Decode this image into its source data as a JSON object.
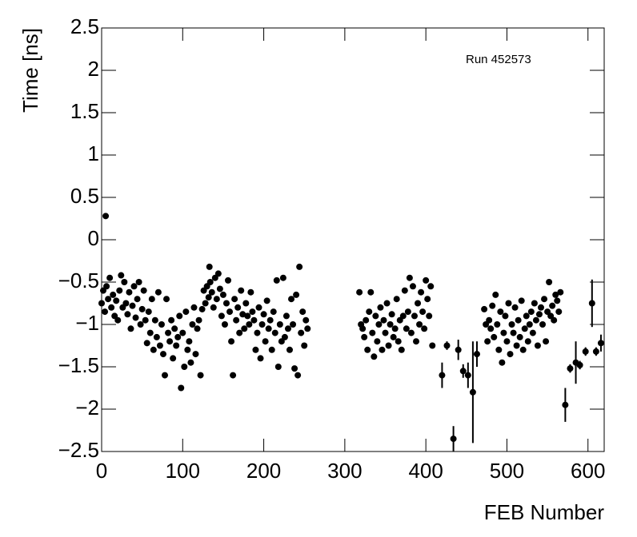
{
  "chart_data": {
    "type": "scatter",
    "annotation": "Run 452573",
    "x_label": "FEB Number",
    "y_label": "Time [ns]",
    "xlim": [
      0,
      620
    ],
    "ylim": [
      -2.5,
      2.5
    ],
    "xticks": [
      0,
      100,
      200,
      300,
      400,
      500,
      600
    ],
    "yticks": [
      {
        "value": -2.5,
        "label": "−2.5"
      },
      {
        "value": -2,
        "label": "−2"
      },
      {
        "value": -1.5,
        "label": "−1.5"
      },
      {
        "value": -1,
        "label": "−1"
      },
      {
        "value": -0.5,
        "label": "−0.5"
      },
      0,
      0.5,
      1,
      1.5,
      2,
      2.5
    ],
    "color": "#000000",
    "x": [
      0,
      2,
      4,
      5,
      6,
      8,
      10,
      12,
      14,
      16,
      18,
      20,
      22,
      24,
      26,
      28,
      30,
      32,
      34,
      36,
      38,
      40,
      42,
      44,
      46,
      48,
      50,
      52,
      54,
      56,
      58,
      60,
      62,
      64,
      66,
      68,
      70,
      72,
      74,
      76,
      78,
      80,
      82,
      84,
      86,
      88,
      90,
      92,
      94,
      96,
      98,
      100,
      102,
      104,
      106,
      108,
      110,
      112,
      114,
      116,
      118,
      120,
      122,
      124,
      126,
      128,
      130,
      132,
      133,
      134,
      136,
      138,
      140,
      142,
      144,
      146,
      148,
      150,
      152,
      154,
      156,
      158,
      160,
      162,
      164,
      166,
      168,
      170,
      172,
      174,
      176,
      178,
      180,
      182,
      184,
      186,
      188,
      190,
      192,
      194,
      196,
      198,
      200,
      202,
      204,
      206,
      208,
      210,
      212,
      214,
      216,
      218,
      220,
      222,
      224,
      226,
      228,
      230,
      232,
      234,
      236,
      238,
      240,
      242,
      244,
      246,
      248,
      250,
      252,
      254,
      318,
      320,
      322,
      324,
      326,
      328,
      330,
      332,
      334,
      336,
      338,
      340,
      342,
      344,
      346,
      348,
      350,
      352,
      354,
      356,
      358,
      360,
      362,
      364,
      366,
      368,
      370,
      372,
      374,
      376,
      378,
      380,
      382,
      384,
      386,
      388,
      390,
      392,
      394,
      396,
      398,
      400,
      402,
      404,
      406,
      408,
      420,
      426,
      434,
      440,
      446,
      452,
      458,
      463,
      472,
      474,
      476,
      478,
      480,
      482,
      484,
      486,
      488,
      490,
      492,
      494,
      496,
      498,
      500,
      502,
      504,
      506,
      508,
      510,
      512,
      514,
      516,
      518,
      520,
      522,
      524,
      526,
      528,
      530,
      532,
      534,
      536,
      538,
      540,
      542,
      544,
      546,
      548,
      550,
      552,
      554,
      556,
      558,
      560,
      562,
      564,
      566,
      572,
      578,
      585,
      590,
      597,
      605,
      610,
      616
    ],
    "values": [
      -0.75,
      -0.6,
      -0.85,
      0.28,
      -0.55,
      -0.7,
      -0.45,
      -0.8,
      -0.65,
      -0.9,
      -0.72,
      -0.95,
      -0.6,
      -0.42,
      -0.8,
      -0.5,
      -0.75,
      -0.88,
      -0.62,
      -1.05,
      -0.78,
      -0.55,
      -0.92,
      -0.7,
      -0.5,
      -1.0,
      -0.82,
      -0.6,
      -0.95,
      -1.22,
      -0.85,
      -1.1,
      -0.7,
      -1.3,
      -0.95,
      -1.15,
      -0.62,
      -1.25,
      -1.0,
      -1.35,
      -1.6,
      -0.7,
      -1.1,
      -1.2,
      -0.95,
      -1.4,
      -1.05,
      -1.25,
      -1.15,
      -0.9,
      -1.75,
      -1.1,
      -1.5,
      -0.85,
      -1.3,
      -1.2,
      -1.45,
      -1.0,
      -0.8,
      -1.35,
      -1.05,
      -0.95,
      -1.6,
      -0.82,
      -0.6,
      -0.75,
      -0.55,
      -0.68,
      -0.32,
      -0.5,
      -0.62,
      -0.8,
      -0.45,
      -0.7,
      -0.4,
      -0.58,
      -0.9,
      -0.65,
      -1.0,
      -0.75,
      -0.48,
      -0.85,
      -1.2,
      -1.6,
      -0.7,
      -0.95,
      -0.8,
      -1.1,
      -0.6,
      -0.88,
      -1.05,
      -0.75,
      -0.9,
      -1.0,
      -0.62,
      -0.85,
      -0.95,
      -1.3,
      -1.1,
      -0.8,
      -1.4,
      -1.0,
      -0.88,
      -1.2,
      -0.72,
      -1.05,
      -0.95,
      -1.3,
      -0.85,
      -1.1,
      -0.48,
      -1.5,
      -1.0,
      -1.2,
      -0.45,
      -1.15,
      -0.9,
      -1.05,
      -1.3,
      -0.7,
      -1.0,
      -1.52,
      -0.65,
      -1.6,
      -0.32,
      -1.1,
      -0.85,
      -1.25,
      -0.95,
      -1.05,
      -0.62,
      -1.0,
      -1.05,
      -1.15,
      -0.95,
      -1.3,
      -0.85,
      -0.62,
      -1.1,
      -1.38,
      -0.9,
      -1.2,
      -1.0,
      -0.8,
      -1.3,
      -0.95,
      -1.1,
      -0.75,
      -1.25,
      -1.0,
      -0.88,
      -1.15,
      -1.05,
      -0.7,
      -1.2,
      -0.95,
      -1.3,
      -0.9,
      -0.6,
      -1.05,
      -0.85,
      -0.45,
      -1.1,
      -0.55,
      -0.9,
      -1.2,
      -0.75,
      -1.0,
      -0.62,
      -0.85,
      -1.05,
      -0.48,
      -0.7,
      -0.9,
      -0.55,
      -1.25,
      -1.6,
      -1.25,
      -2.35,
      -1.3,
      -1.55,
      -1.6,
      -1.8,
      -1.35,
      -0.82,
      -1.0,
      -1.2,
      -0.95,
      -1.05,
      -0.78,
      -1.15,
      -0.65,
      -1.0,
      -1.3,
      -0.85,
      -1.45,
      -1.1,
      -0.9,
      -1.2,
      -0.75,
      -1.35,
      -1.0,
      -1.1,
      -0.8,
      -1.25,
      -0.95,
      -1.15,
      -0.72,
      -1.3,
      -1.05,
      -0.9,
      -1.2,
      -1.0,
      -0.85,
      -1.1,
      -0.75,
      -0.95,
      -1.25,
      -0.88,
      -0.8,
      -1.0,
      -0.7,
      -1.2,
      -0.85,
      -0.5,
      -0.9,
      -0.78,
      -0.95,
      -0.65,
      -0.72,
      -0.85,
      -0.62,
      -1.95,
      -1.52,
      -1.45,
      -1.48,
      -1.32,
      -0.75,
      -1.32,
      -1.22
    ],
    "errors": [
      0.02,
      0.02,
      0.02,
      0.02,
      0.02,
      0.02,
      0.02,
      0.02,
      0.02,
      0.02,
      0.02,
      0.02,
      0.02,
      0.02,
      0.02,
      0.02,
      0.02,
      0.02,
      0.02,
      0.02,
      0.02,
      0.02,
      0.02,
      0.02,
      0.02,
      0.02,
      0.02,
      0.02,
      0.02,
      0.02,
      0.02,
      0.02,
      0.02,
      0.02,
      0.02,
      0.02,
      0.02,
      0.02,
      0.02,
      0.02,
      0.02,
      0.02,
      0.02,
      0.02,
      0.02,
      0.02,
      0.02,
      0.02,
      0.02,
      0.02,
      0.02,
      0.02,
      0.02,
      0.02,
      0.02,
      0.02,
      0.02,
      0.02,
      0.02,
      0.02,
      0.02,
      0.02,
      0.02,
      0.02,
      0.02,
      0.02,
      0.02,
      0.02,
      0.02,
      0.02,
      0.02,
      0.02,
      0.02,
      0.02,
      0.02,
      0.02,
      0.02,
      0.02,
      0.02,
      0.02,
      0.02,
      0.02,
      0.02,
      0.02,
      0.02,
      0.02,
      0.02,
      0.02,
      0.02,
      0.02,
      0.02,
      0.02,
      0.02,
      0.02,
      0.02,
      0.02,
      0.02,
      0.02,
      0.02,
      0.02,
      0.02,
      0.02,
      0.02,
      0.02,
      0.02,
      0.02,
      0.02,
      0.02,
      0.02,
      0.02,
      0.02,
      0.02,
      0.02,
      0.02,
      0.02,
      0.02,
      0.02,
      0.02,
      0.02,
      0.02,
      0.02,
      0.02,
      0.02,
      0.02,
      0.02,
      0.02,
      0.02,
      0.02,
      0.02,
      0.02,
      0.02,
      0.02,
      0.02,
      0.02,
      0.02,
      0.02,
      0.02,
      0.02,
      0.02,
      0.02,
      0.02,
      0.02,
      0.02,
      0.02,
      0.02,
      0.02,
      0.02,
      0.02,
      0.02,
      0.02,
      0.02,
      0.02,
      0.02,
      0.02,
      0.02,
      0.02,
      0.02,
      0.02,
      0.02,
      0.02,
      0.02,
      0.02,
      0.02,
      0.02,
      0.02,
      0.02,
      0.02,
      0.02,
      0.02,
      0.02,
      0.02,
      0.02,
      0.02,
      0.02,
      0.02,
      0.02,
      0.15,
      0.05,
      0.15,
      0.12,
      0.08,
      0.15,
      0.6,
      0.15,
      0.02,
      0.02,
      0.02,
      0.02,
      0.02,
      0.02,
      0.02,
      0.02,
      0.02,
      0.02,
      0.02,
      0.02,
      0.02,
      0.02,
      0.02,
      0.02,
      0.02,
      0.02,
      0.02,
      0.02,
      0.02,
      0.02,
      0.02,
      0.02,
      0.02,
      0.02,
      0.02,
      0.02,
      0.02,
      0.02,
      0.02,
      0.02,
      0.02,
      0.02,
      0.02,
      0.02,
      0.02,
      0.02,
      0.02,
      0.02,
      0.02,
      0.02,
      0.02,
      0.02,
      0.02,
      0.02,
      0.02,
      0.02,
      0.2,
      0.05,
      0.25,
      0.05,
      0.05,
      0.28,
      0.05,
      0.1
    ]
  }
}
